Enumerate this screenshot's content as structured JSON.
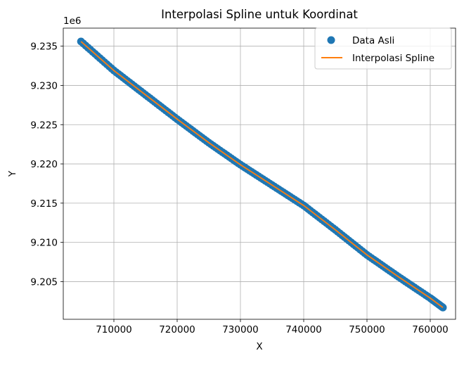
{
  "chart_data": {
    "type": "scatter",
    "title": "Interpolasi Spline untuk Koordinat",
    "xlabel": "X",
    "ylabel": "Y",
    "y_offset_label": "1e6",
    "xlim": [
      702000,
      764000
    ],
    "ylim": [
      9200200,
      9237300
    ],
    "x_ticks": [
      710000,
      720000,
      730000,
      740000,
      750000,
      760000
    ],
    "x_tick_labels": [
      "710000",
      "720000",
      "730000",
      "740000",
      "750000",
      "760000"
    ],
    "y_ticks": [
      9205000,
      9210000,
      9215000,
      9220000,
      9225000,
      9230000,
      9235000
    ],
    "y_tick_labels": [
      "9.205",
      "9.210",
      "9.215",
      "9.220",
      "9.225",
      "9.230",
      "9.235"
    ],
    "grid": true,
    "legend_position": "upper right",
    "series": [
      {
        "name": "Data Asli",
        "kind": "scatter",
        "color": "#1f77b4",
        "x": [
          704800,
          710000,
          715000,
          720000,
          725000,
          730000,
          735000,
          740000,
          745000,
          750000,
          755000,
          760000,
          762000
        ],
        "y": [
          9235600,
          9231900,
          9228800,
          9225700,
          9222700,
          9219900,
          9217300,
          9214700,
          9211600,
          9208400,
          9205600,
          9202900,
          9201700
        ]
      },
      {
        "name": "Interpolasi Spline",
        "kind": "line",
        "color": "#ff7f0e",
        "x": [
          704800,
          710000,
          715000,
          720000,
          725000,
          730000,
          735000,
          740000,
          745000,
          750000,
          755000,
          760000,
          762000
        ],
        "y": [
          9235600,
          9231900,
          9228800,
          9225700,
          9222700,
          9219900,
          9217300,
          9214700,
          9211600,
          9208400,
          9205600,
          9202900,
          9201700
        ]
      }
    ]
  }
}
